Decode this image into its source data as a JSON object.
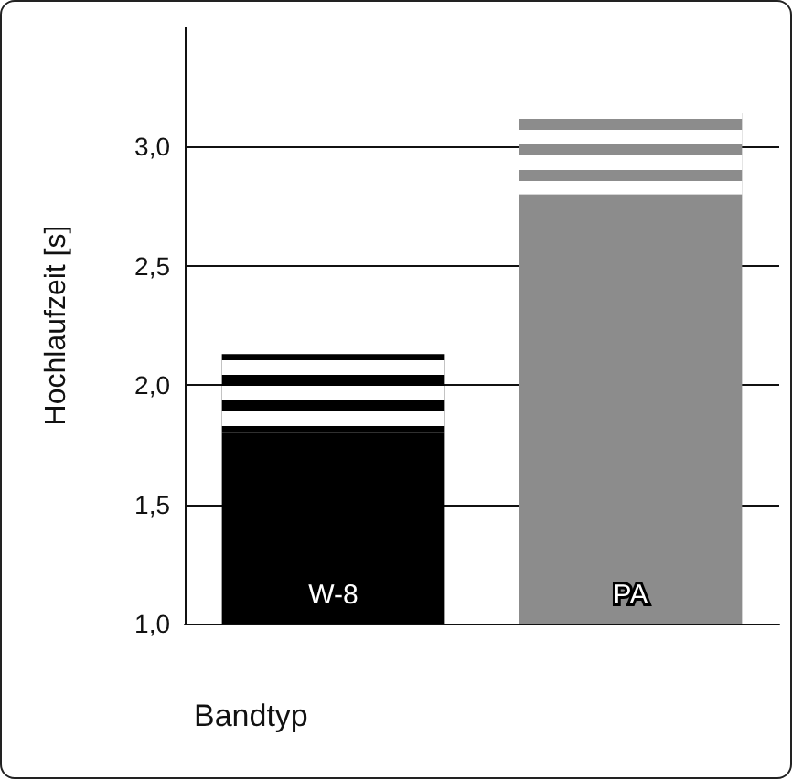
{
  "chart_data": {
    "type": "bar",
    "xlabel": "Bandtyp",
    "ylabel": "Hochlaufzeit [s]",
    "categories": [
      "W-8",
      "PA"
    ],
    "series": [
      {
        "colors": [
          "#000000",
          "#8c8c8c"
        ],
        "base": [
          1.0,
          1.0
        ],
        "values": [
          0.8,
          1.8
        ]
      },
      {
        "colors": [
          "#000000",
          "#8c8c8c"
        ],
        "base": [
          1.8,
          2.8
        ],
        "values": [
          0.33,
          0.34
        ]
      }
    ],
    "ylim": [
      1.0,
      3.5
    ],
    "yticks": [
      {
        "value": 1.0,
        "label": "1,0"
      },
      {
        "value": 1.5,
        "label": "1,5"
      },
      {
        "value": 2.0,
        "label": "2,0"
      },
      {
        "value": 2.5,
        "label": "2,5"
      },
      {
        "value": 3.0,
        "label": "3,0"
      }
    ],
    "grid": "y"
  }
}
